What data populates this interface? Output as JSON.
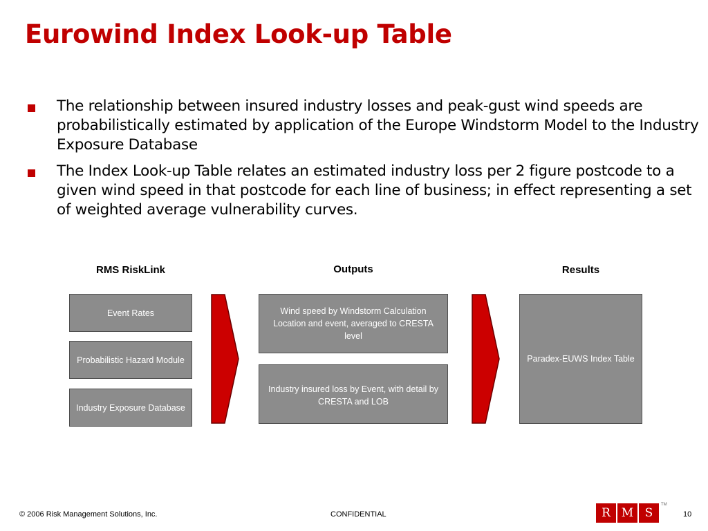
{
  "slide": {
    "title": "Eurowind Index Look-up Table",
    "bullets": [
      "The relationship between insured industry losses and peak-gust wind speeds are probabilistically estimated by application of the Europe Windstorm Model to the Industry Exposure Database",
      "The Index Look-up Table relates an estimated industry loss per 2 figure postcode to a given wind speed in that postcode for each line of business; in effect representing a set of weighted average vulnerability curves."
    ]
  },
  "diagram": {
    "columns": {
      "riskLink": "RMS RiskLink",
      "outputs": "Outputs",
      "results": "Results"
    },
    "riskLinkBoxes": [
      "Event Rates",
      "Probabilistic Hazard Module",
      "Industry Exposure Database"
    ],
    "outputBoxes": [
      "Wind speed by Windstorm Calculation Location and event, averaged to CRESTA level",
      "Industry insured loss by Event, with detail by CRESTA and LOB"
    ],
    "resultBox": "Paradex-EUWS Index Table",
    "arrowColor": "#cc0000",
    "boxColor": "#8c8c8c"
  },
  "footer": {
    "copyright": "© 2006 Risk Management Solutions, Inc.",
    "confidential": "CONFIDENTIAL",
    "page": "10",
    "logoLetters": [
      "R",
      "M",
      "S"
    ],
    "trademark": "TM"
  },
  "colors": {
    "accent": "#c00000"
  }
}
